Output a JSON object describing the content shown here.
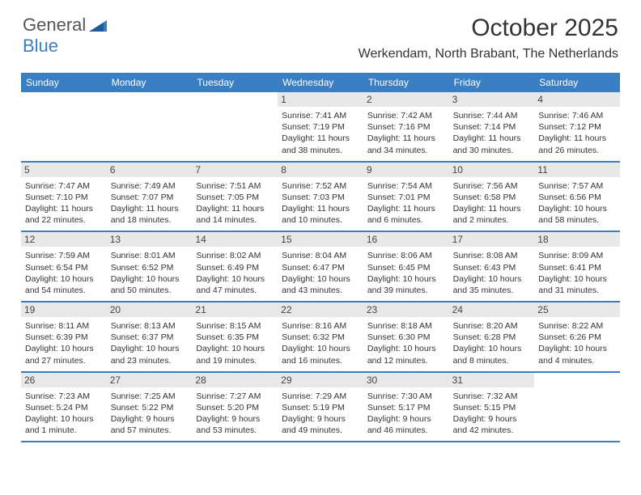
{
  "brand": {
    "part1": "General",
    "part2": "Blue"
  },
  "title": "October 2025",
  "location": "Werkendam, North Brabant, The Netherlands",
  "colors": {
    "header_bg": "#3a7fc4",
    "daynum_bg": "#e8e8e8",
    "text": "#333333",
    "brand_gray": "#555555"
  },
  "day_headers": [
    "Sunday",
    "Monday",
    "Tuesday",
    "Wednesday",
    "Thursday",
    "Friday",
    "Saturday"
  ],
  "weeks": [
    [
      null,
      null,
      null,
      {
        "n": "1",
        "sr": "7:41 AM",
        "ss": "7:19 PM",
        "dl": "11 hours and 38 minutes."
      },
      {
        "n": "2",
        "sr": "7:42 AM",
        "ss": "7:16 PM",
        "dl": "11 hours and 34 minutes."
      },
      {
        "n": "3",
        "sr": "7:44 AM",
        "ss": "7:14 PM",
        "dl": "11 hours and 30 minutes."
      },
      {
        "n": "4",
        "sr": "7:46 AM",
        "ss": "7:12 PM",
        "dl": "11 hours and 26 minutes."
      }
    ],
    [
      {
        "n": "5",
        "sr": "7:47 AM",
        "ss": "7:10 PM",
        "dl": "11 hours and 22 minutes."
      },
      {
        "n": "6",
        "sr": "7:49 AM",
        "ss": "7:07 PM",
        "dl": "11 hours and 18 minutes."
      },
      {
        "n": "7",
        "sr": "7:51 AM",
        "ss": "7:05 PM",
        "dl": "11 hours and 14 minutes."
      },
      {
        "n": "8",
        "sr": "7:52 AM",
        "ss": "7:03 PM",
        "dl": "11 hours and 10 minutes."
      },
      {
        "n": "9",
        "sr": "7:54 AM",
        "ss": "7:01 PM",
        "dl": "11 hours and 6 minutes."
      },
      {
        "n": "10",
        "sr": "7:56 AM",
        "ss": "6:58 PM",
        "dl": "11 hours and 2 minutes."
      },
      {
        "n": "11",
        "sr": "7:57 AM",
        "ss": "6:56 PM",
        "dl": "10 hours and 58 minutes."
      }
    ],
    [
      {
        "n": "12",
        "sr": "7:59 AM",
        "ss": "6:54 PM",
        "dl": "10 hours and 54 minutes."
      },
      {
        "n": "13",
        "sr": "8:01 AM",
        "ss": "6:52 PM",
        "dl": "10 hours and 50 minutes."
      },
      {
        "n": "14",
        "sr": "8:02 AM",
        "ss": "6:49 PM",
        "dl": "10 hours and 47 minutes."
      },
      {
        "n": "15",
        "sr": "8:04 AM",
        "ss": "6:47 PM",
        "dl": "10 hours and 43 minutes."
      },
      {
        "n": "16",
        "sr": "8:06 AM",
        "ss": "6:45 PM",
        "dl": "10 hours and 39 minutes."
      },
      {
        "n": "17",
        "sr": "8:08 AM",
        "ss": "6:43 PM",
        "dl": "10 hours and 35 minutes."
      },
      {
        "n": "18",
        "sr": "8:09 AM",
        "ss": "6:41 PM",
        "dl": "10 hours and 31 minutes."
      }
    ],
    [
      {
        "n": "19",
        "sr": "8:11 AM",
        "ss": "6:39 PM",
        "dl": "10 hours and 27 minutes."
      },
      {
        "n": "20",
        "sr": "8:13 AM",
        "ss": "6:37 PM",
        "dl": "10 hours and 23 minutes."
      },
      {
        "n": "21",
        "sr": "8:15 AM",
        "ss": "6:35 PM",
        "dl": "10 hours and 19 minutes."
      },
      {
        "n": "22",
        "sr": "8:16 AM",
        "ss": "6:32 PM",
        "dl": "10 hours and 16 minutes."
      },
      {
        "n": "23",
        "sr": "8:18 AM",
        "ss": "6:30 PM",
        "dl": "10 hours and 12 minutes."
      },
      {
        "n": "24",
        "sr": "8:20 AM",
        "ss": "6:28 PM",
        "dl": "10 hours and 8 minutes."
      },
      {
        "n": "25",
        "sr": "8:22 AM",
        "ss": "6:26 PM",
        "dl": "10 hours and 4 minutes."
      }
    ],
    [
      {
        "n": "26",
        "sr": "7:23 AM",
        "ss": "5:24 PM",
        "dl": "10 hours and 1 minute."
      },
      {
        "n": "27",
        "sr": "7:25 AM",
        "ss": "5:22 PM",
        "dl": "9 hours and 57 minutes."
      },
      {
        "n": "28",
        "sr": "7:27 AM",
        "ss": "5:20 PM",
        "dl": "9 hours and 53 minutes."
      },
      {
        "n": "29",
        "sr": "7:29 AM",
        "ss": "5:19 PM",
        "dl": "9 hours and 49 minutes."
      },
      {
        "n": "30",
        "sr": "7:30 AM",
        "ss": "5:17 PM",
        "dl": "9 hours and 46 minutes."
      },
      {
        "n": "31",
        "sr": "7:32 AM",
        "ss": "5:15 PM",
        "dl": "9 hours and 42 minutes."
      },
      null
    ]
  ],
  "labels": {
    "sunrise": "Sunrise:",
    "sunset": "Sunset:",
    "daylight": "Daylight:"
  }
}
